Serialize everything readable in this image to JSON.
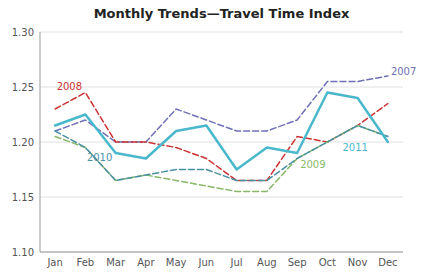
{
  "chart_data": {
    "type": "line",
    "title": "Monthly Trends—Travel Time Index",
    "categories": [
      "Jan",
      "Feb",
      "Mar",
      "Apr",
      "May",
      "Jun",
      "Jul",
      "Aug",
      "Sep",
      "Oct",
      "Nov",
      "Dec"
    ],
    "ylim": [
      1.1,
      1.3
    ],
    "yticks": [
      {
        "value": 1.1,
        "label": "1.10"
      },
      1.15,
      {
        "value": 1.2,
        "label": "1.20"
      },
      1.25,
      {
        "value": 1.3,
        "label": "1.30"
      }
    ],
    "grid": true,
    "series": [
      {
        "color": "#7070b8",
        "line_style": "dashed",
        "values": [
          1.21,
          1.22,
          1.2,
          1.2,
          1.23,
          1.22,
          1.21,
          1.21,
          1.22,
          1.255,
          1.255,
          1.26
        ]
      },
      {
        "color": "#cc3333",
        "line_style": "dashed",
        "values": [
          1.23,
          1.245,
          1.2,
          1.2,
          1.195,
          1.185,
          1.165,
          1.165,
          1.205,
          1.2,
          1.215,
          1.235
        ]
      },
      {
        "color": "#88b868",
        "line_style": "dashed",
        "values": [
          1.205,
          1.195,
          1.165,
          1.17,
          1.165,
          1.16,
          1.155,
          1.155,
          1.185,
          1.2,
          1.215,
          1.205
        ]
      },
      {
        "color": "#4a90a4",
        "line_style": "dashed",
        "values": [
          1.21,
          1.195,
          1.165,
          1.17,
          1.175,
          1.175,
          1.165,
          1.165,
          1.185,
          1.2,
          1.215,
          1.205
        ]
      },
      {
        "color": "#4ab8cc",
        "line_style": "solid",
        "values": [
          1.215,
          1.225,
          1.19,
          1.185,
          1.21,
          1.215,
          1.175,
          1.195,
          1.19,
          1.245,
          1.24,
          1.2
        ]
      }
    ],
    "annotations": [
      {
        "text": "2007",
        "x": 11.1,
        "y": 1.261,
        "color": "#7070b8"
      },
      {
        "text": "2008",
        "x": 0.05,
        "y": 1.247,
        "color": "#cc3333"
      },
      {
        "text": "2009",
        "x": 8.1,
        "y": 1.176,
        "color": "#88b868"
      },
      {
        "text": "2010",
        "x": 1.05,
        "y": 1.183,
        "color": "#4a90a4"
      },
      {
        "text": "2011",
        "x": 9.5,
        "y": 1.192,
        "color": "#4ab8cc"
      }
    ]
  }
}
